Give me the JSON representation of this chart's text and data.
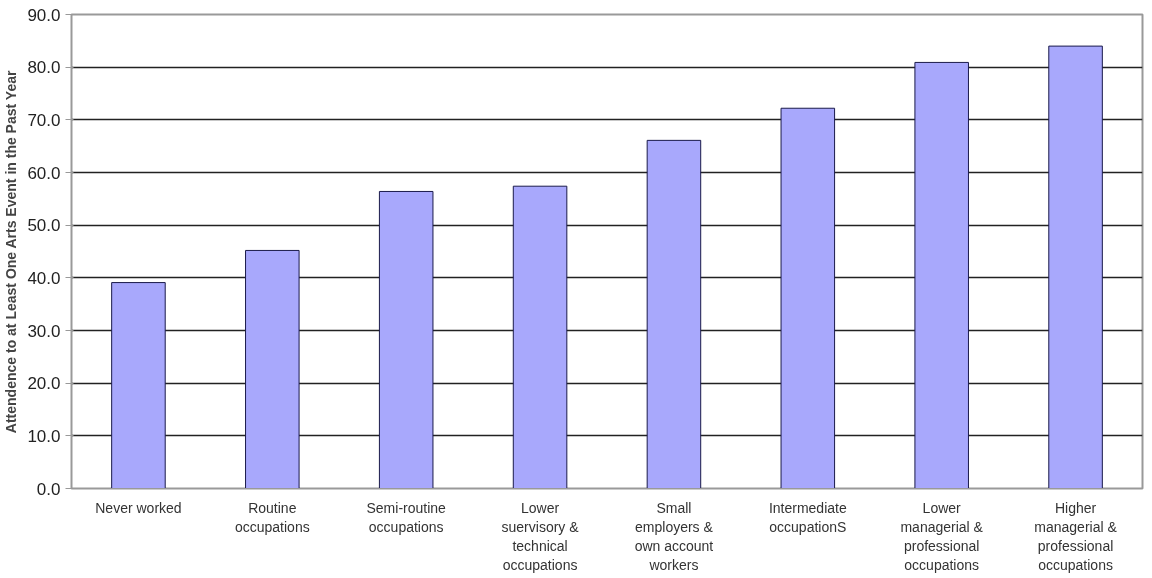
{
  "chart_data": {
    "type": "bar",
    "ylabel": "Attendence to at Least One Arts Event in the Past Year",
    "categories": [
      "Never worked",
      "Routine occupations",
      "Semi-routine occupations",
      "Lower suervisory & technical occupations",
      "Small employers & own account workers",
      "Intermediate occupationS",
      "Lower managerial & professional occupations",
      "Higher managerial & professional occupations"
    ],
    "values": [
      39.1,
      45.2,
      56.4,
      57.4,
      66.1,
      72.2,
      80.9,
      84.0
    ],
    "color": "#a8a8fc",
    "ylim": [
      0,
      90
    ],
    "yticks": [
      {
        "value": 0,
        "label": "0.0"
      },
      {
        "value": 10,
        "label": "10.0"
      },
      {
        "value": 20,
        "label": "20.0"
      },
      {
        "value": 30,
        "label": "30.0"
      },
      {
        "value": 40,
        "label": "40.0"
      },
      {
        "value": 50,
        "label": "50.0"
      },
      {
        "value": 60,
        "label": "60.0"
      },
      {
        "value": 70,
        "label": "70.0"
      },
      {
        "value": 80,
        "label": "80.0"
      },
      {
        "value": 90,
        "label": "90.0"
      }
    ],
    "grid": "y"
  }
}
